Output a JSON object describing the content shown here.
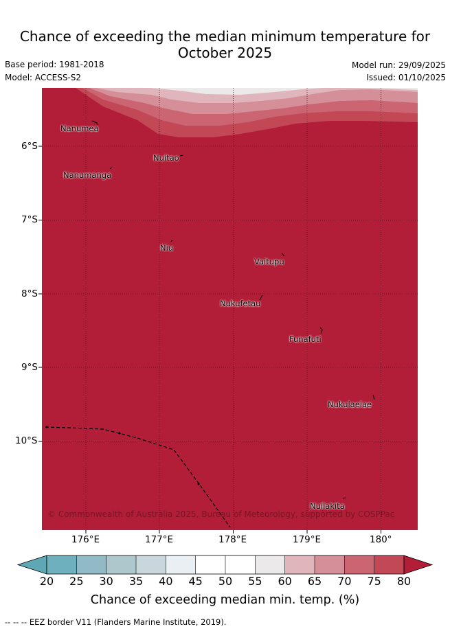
{
  "title": {
    "line1": "Chance of exceeding the median minimum temperature for",
    "line2": "October 2025"
  },
  "meta": {
    "base_period": "Base period: 1981-2018",
    "model": "Model: ACCESS-S2",
    "model_run": "Model run: 29/09/2025",
    "issued": "Issued: 01/10/2025"
  },
  "map": {
    "lat_labels": [
      "6°S",
      "7°S",
      "8°S",
      "9°S",
      "10°S"
    ],
    "lon_labels": [
      "176°E",
      "177°E",
      "178°E",
      "179°E",
      "180°"
    ],
    "places": [
      "Nanumea",
      "Nanumanga",
      "Nuitao",
      "Niu",
      "Vaitupu",
      "Nukufetau",
      "Funafuti",
      "Nukulaelae",
      "Nuilakita"
    ],
    "copyright": "© Commonwealth of Australia 2025, Bureau of Meteorology, supported by COSPPac",
    "dominant_category": "80"
  },
  "colorbar": {
    "ticks": [
      "20",
      "25",
      "30",
      "35",
      "40",
      "45",
      "50",
      "55",
      "60",
      "65",
      "70",
      "75",
      "80"
    ],
    "colors": [
      "#5fa7b5",
      "#6eb0bd",
      "#90bac5",
      "#acc8cd",
      "#c9d7dc",
      "#e9eff2",
      "#ffffff",
      "#ffffff",
      "#ebe9ea",
      "#e0b6bc",
      "#d48f98",
      "#ca6571",
      "#c24856",
      "#b21e38"
    ],
    "label": "Chance of exceeding median min. temp. (%)"
  },
  "footnote": "--  --  -- EEZ border V11 (Flanders Marine Institute, 2019)."
}
